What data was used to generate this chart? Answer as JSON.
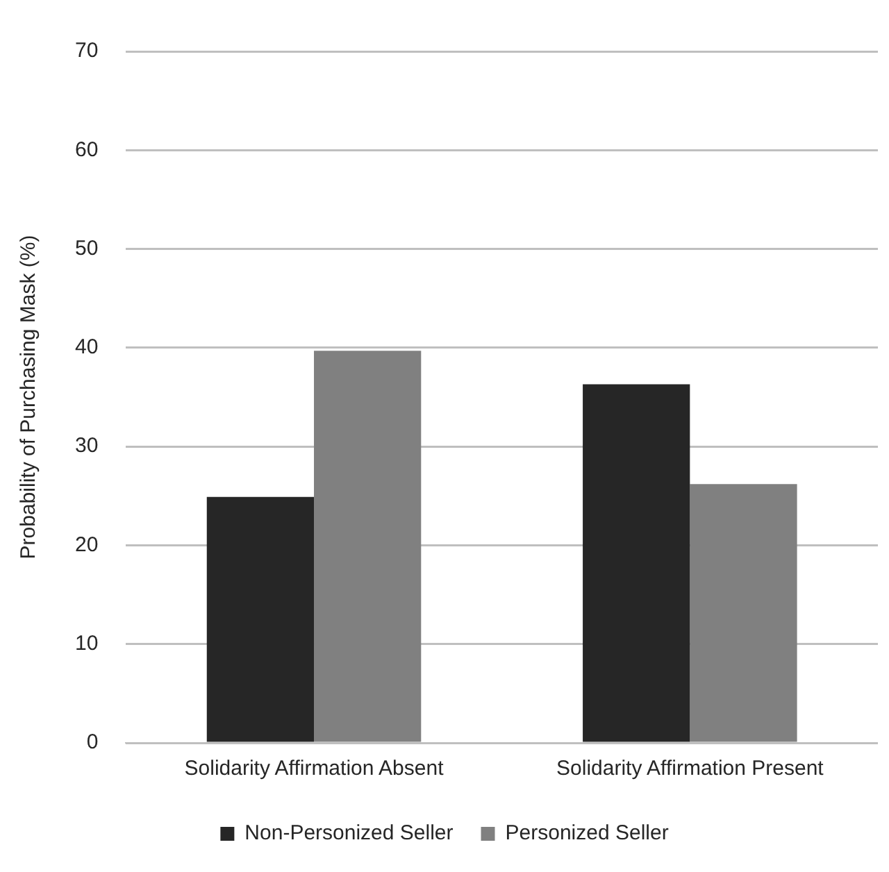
{
  "chart_data": {
    "type": "bar",
    "ylabel": "Probability of Purchasing Mask (%)",
    "categories": [
      "Solidarity Affirmation Absent",
      "Solidarity Affirmation Present"
    ],
    "series": [
      {
        "name": "Non-Personized Seller",
        "color": "#262626",
        "values": [
          24.9,
          36.3
        ]
      },
      {
        "name": "Personized Seller",
        "color": "#808080",
        "values": [
          39.7,
          26.2
        ]
      }
    ],
    "ylim": [
      0,
      70
    ],
    "yticks": [
      0,
      10,
      20,
      30,
      40,
      50,
      60,
      70
    ],
    "grid": "y",
    "legend": "bottom"
  }
}
